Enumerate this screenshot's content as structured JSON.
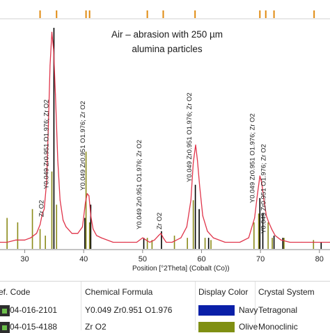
{
  "chart_data": {
    "type": "line",
    "title_lines": [
      "Air – abrasion with 250 µm",
      "alumina particles"
    ],
    "xlabel": "Position [°2Theta] (Cobalt (Co))",
    "ylabel": "",
    "xlim": [
      25.8,
      81.8
    ],
    "xticks": [
      30,
      40,
      50,
      60,
      70,
      80
    ],
    "ylim": [
      0,
      100
    ],
    "grid": false,
    "series": [
      {
        "color": "#e0344a",
        "x": [
          25.8,
          27.0,
          28.5,
          30.0,
          31.0,
          32.0,
          32.6,
          33.0,
          33.3,
          33.7,
          34.0,
          34.3,
          34.6,
          34.9,
          35.2,
          35.6,
          36.0,
          36.5,
          37.0,
          38.0,
          39.0,
          39.8,
          40.3,
          40.6,
          40.9,
          41.2,
          41.6,
          42.2,
          43.0,
          45.0,
          47.0,
          49.0,
          50.0,
          50.6,
          51.2,
          52.0,
          52.7,
          53.1,
          53.5,
          54.0,
          55.0,
          56.5,
          57.5,
          58.2,
          58.6,
          59.0,
          59.3,
          59.7,
          60.2,
          61.0,
          62.0,
          64.0,
          66.5,
          68.0,
          69.0,
          69.5,
          69.9,
          70.2,
          70.6,
          71.0,
          71.4,
          71.9,
          72.5,
          73.5,
          75.0,
          77.0,
          79.0,
          81.8
        ],
        "y": [
          3,
          3,
          4,
          4,
          5,
          7,
          11,
          16,
          18,
          30,
          55,
          83,
          98,
          90,
          70,
          40,
          22,
          13,
          10,
          7,
          7,
          10,
          21,
          25,
          24,
          15,
          9,
          6,
          5,
          3,
          3,
          3,
          5,
          4,
          3,
          4,
          6,
          7,
          5,
          3,
          3,
          5,
          10,
          22,
          39,
          47,
          40,
          28,
          15,
          8,
          5,
          3,
          3,
          5,
          14,
          25,
          33,
          30,
          22,
          15,
          12,
          9,
          6,
          4,
          3,
          3,
          3,
          3
        ]
      }
    ],
    "reference_patterns": [
      {
        "color": "#000000",
        "peaks": [
          [
            34.95,
            100
          ],
          [
            40.2,
            14
          ],
          [
            41.2,
            20
          ],
          [
            50.2,
            5
          ],
          [
            53.2,
            8
          ],
          [
            58.95,
            29
          ],
          [
            59.6,
            18
          ],
          [
            61.2,
            5
          ],
          [
            69.9,
            23
          ],
          [
            70.4,
            16
          ],
          [
            72.3,
            6
          ],
          [
            73.8,
            5
          ],
          [
            80.3,
            3
          ]
        ]
      },
      {
        "color": "#8a8a18",
        "peaks": [
          [
            27.0,
            14
          ],
          [
            28.8,
            12
          ],
          [
            31.3,
            18
          ],
          [
            32.6,
            9
          ],
          [
            33.5,
            6
          ],
          [
            34.6,
            35
          ],
          [
            35.4,
            20
          ],
          [
            40.4,
            44
          ],
          [
            41.0,
            12
          ],
          [
            50.8,
            5
          ],
          [
            51.6,
            4
          ],
          [
            55.4,
            6
          ],
          [
            57.6,
            5
          ],
          [
            58.6,
            22
          ],
          [
            60.6,
            5
          ],
          [
            61.6,
            4
          ],
          [
            68.9,
            12
          ],
          [
            69.7,
            16
          ],
          [
            71.3,
            12
          ],
          [
            72.0,
            5
          ],
          [
            74.0,
            5
          ],
          [
            79.0,
            4
          ]
        ]
      },
      {
        "color": "#e08a10",
        "top_markers": [
          32.6,
          35.4,
          40.4,
          41.0,
          50.8,
          53.5,
          58.9,
          69.9,
          70.9,
          72.3,
          79.1
        ]
      }
    ],
    "peak_labels": [
      {
        "x": 34.0,
        "text": "Y0.049 Zr0.951 O1.976; Zr O2"
      },
      {
        "x": 33.2,
        "text": "Zr O2"
      },
      {
        "x": 40.2,
        "text": "Y0.049 Zr0.951 O1.976; Zr O2"
      },
      {
        "x": 49.8,
        "text": "Y0.049 Zr0.951 O1.976; Zr O2"
      },
      {
        "x": 53.2,
        "text": "Zr O2"
      },
      {
        "x": 58.3,
        "text": "Y0.049 Zr0.951 O1.976; Zr O2"
      },
      {
        "x": 69.0,
        "text": "Y0.049 Zr0.951 O1.976; Zr O2"
      },
      {
        "x": 70.9,
        "text": "Y0.049 Zr0.951 O1.976; Zr O2"
      }
    ]
  },
  "table": {
    "headers": [
      "ef. Code",
      "Chemical Formula",
      "Display Color",
      "Crystal System"
    ],
    "rows": [
      {
        "code": "04-016-2101",
        "formula": "Y0.049 Zr0.951 O1.976",
        "color_name": "Navy",
        "color": "#0a1fa8",
        "system": "Tetragonal"
      },
      {
        "code": "04-015-4188",
        "formula": "Zr O2",
        "color_name": "Olive",
        "color": "#7f8f12",
        "system": "Monoclinic"
      }
    ]
  }
}
